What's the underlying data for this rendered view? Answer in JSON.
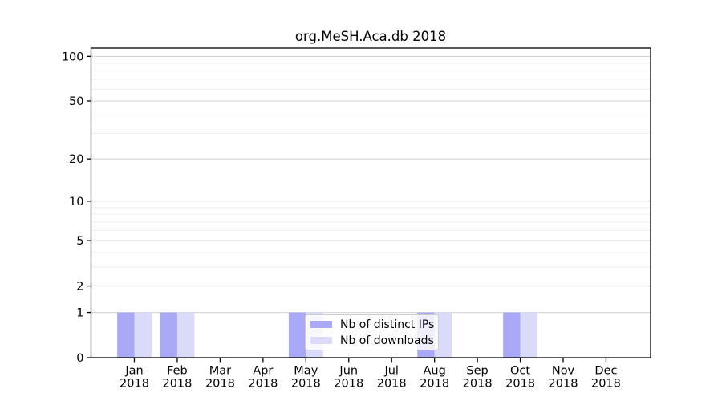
{
  "chart_data": {
    "type": "bar",
    "title": "org.MeSH.Aca.db 2018",
    "categories": [
      "Jan",
      "Feb",
      "Mar",
      "Apr",
      "May",
      "Jun",
      "Jul",
      "Aug",
      "Sep",
      "Oct",
      "Nov",
      "Dec"
    ],
    "category_year": "2018",
    "series": [
      {
        "name": "Nb of distinct IPs",
        "color": "#a9a9f8",
        "values": [
          1,
          1,
          0,
          0,
          1,
          0,
          0,
          1,
          0,
          1,
          0,
          0
        ]
      },
      {
        "name": "Nb of downloads",
        "color": "#dadaf9",
        "values": [
          1,
          1,
          0,
          0,
          1,
          0,
          0,
          1,
          0,
          1,
          0,
          0
        ]
      }
    ],
    "xlabel": "",
    "ylabel": "",
    "y_scale": "log1p",
    "y_ticks": [
      0,
      1,
      2,
      5,
      10,
      20,
      50,
      100
    ],
    "y_minor_gridlines": [
      3,
      4,
      6,
      7,
      8,
      9,
      30,
      40,
      60,
      70,
      80,
      90
    ],
    "ylim": [
      0,
      115
    ],
    "grid": true,
    "legend_position": "inside lower center"
  },
  "colors": {
    "background": "#ffffff",
    "axis": "#000000",
    "grid_major": "#d0d0d0",
    "grid_minor": "#efefef",
    "legend_border": "#cccccc",
    "bar_distinct_ips": "#a9a9f8",
    "bar_downloads": "#dadaf9"
  }
}
